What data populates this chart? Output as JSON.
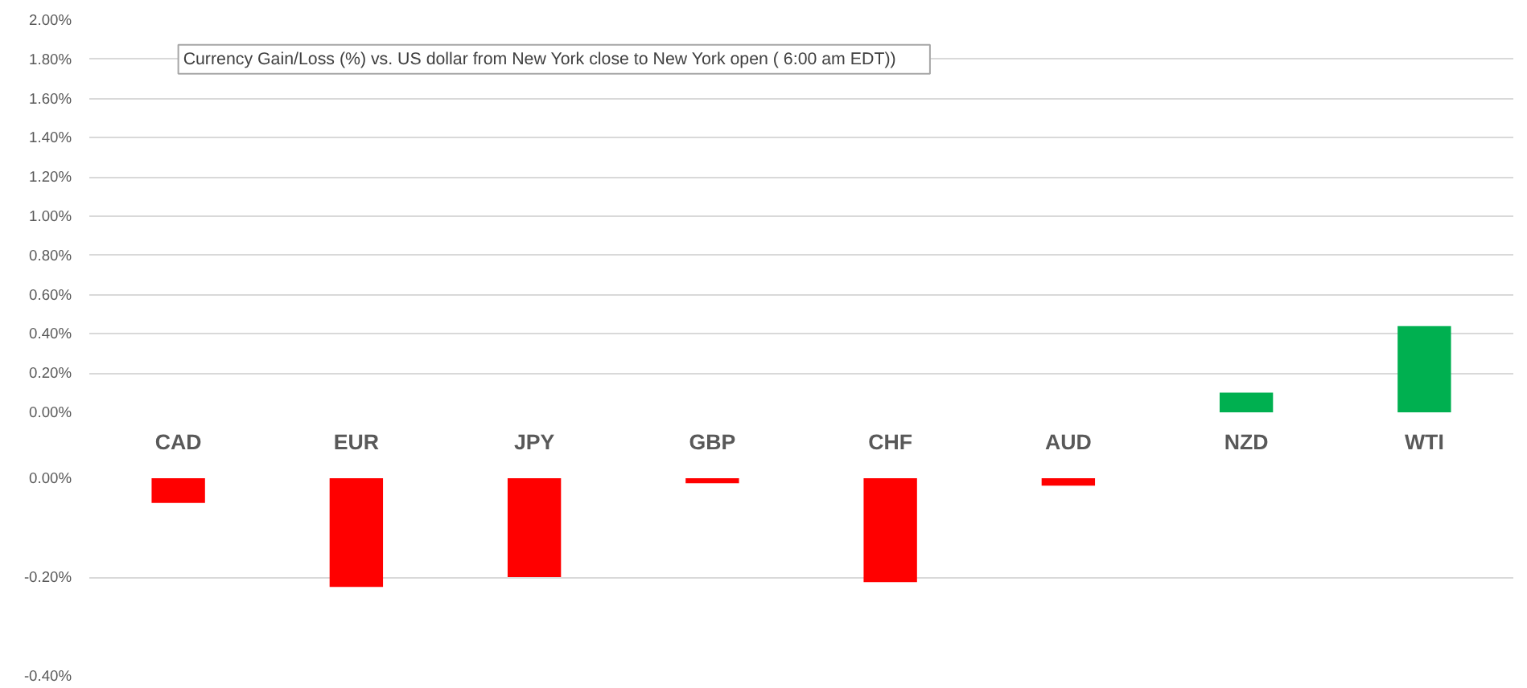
{
  "chart_data": [
    {
      "type": "bar",
      "title": "Currency  Gain/Loss (%) vs. US dollar  from New York  close  to  New York open  ( 6:00 am EDT))",
      "categories": [
        "CAD",
        "EUR",
        "JPY",
        "GBP",
        "CHF",
        "AUD",
        "NZD",
        "WTI"
      ],
      "series": [
        {
          "color": "#00b050",
          "values": [
            null,
            null,
            null,
            null,
            null,
            null,
            0.1,
            0.44
          ]
        }
      ],
      "ylim": [
        0,
        2.0
      ],
      "yticks": [
        {
          "value": 0,
          "label": "0.00%"
        },
        {
          "value": 0.2,
          "label": "0.20%"
        },
        {
          "value": 0.4,
          "label": "0.40%"
        },
        {
          "value": 0.6,
          "label": "0.60%"
        },
        {
          "value": 0.8,
          "label": "0.80%"
        },
        {
          "value": 1.0,
          "label": "1.00%"
        },
        {
          "value": 1.2,
          "label": "1.20%"
        },
        {
          "value": 1.4,
          "label": "1.40%"
        },
        {
          "value": 1.6,
          "label": "1.60%"
        },
        {
          "value": 1.8,
          "label": "1.80%"
        },
        {
          "value": 2.0,
          "label": "2.00%"
        }
      ],
      "grid": "y"
    },
    {
      "type": "bar",
      "categories": [
        null,
        null,
        null,
        null,
        null,
        null,
        null,
        null
      ],
      "series": [
        {
          "color": "#ff0000",
          "values": [
            -0.05,
            -0.22,
            -0.2,
            -0.01,
            -0.21,
            -0.015,
            null,
            null
          ]
        }
      ],
      "ylim": [
        -0.4,
        0
      ],
      "yticks": [
        {
          "value": 0,
          "label": "0.00%"
        },
        {
          "value": -0.2,
          "label": "-0.20%"
        },
        {
          "value": -0.4,
          "label": "-0.40%"
        }
      ],
      "grid": "y",
      "tick_labels": "y"
    }
  ]
}
